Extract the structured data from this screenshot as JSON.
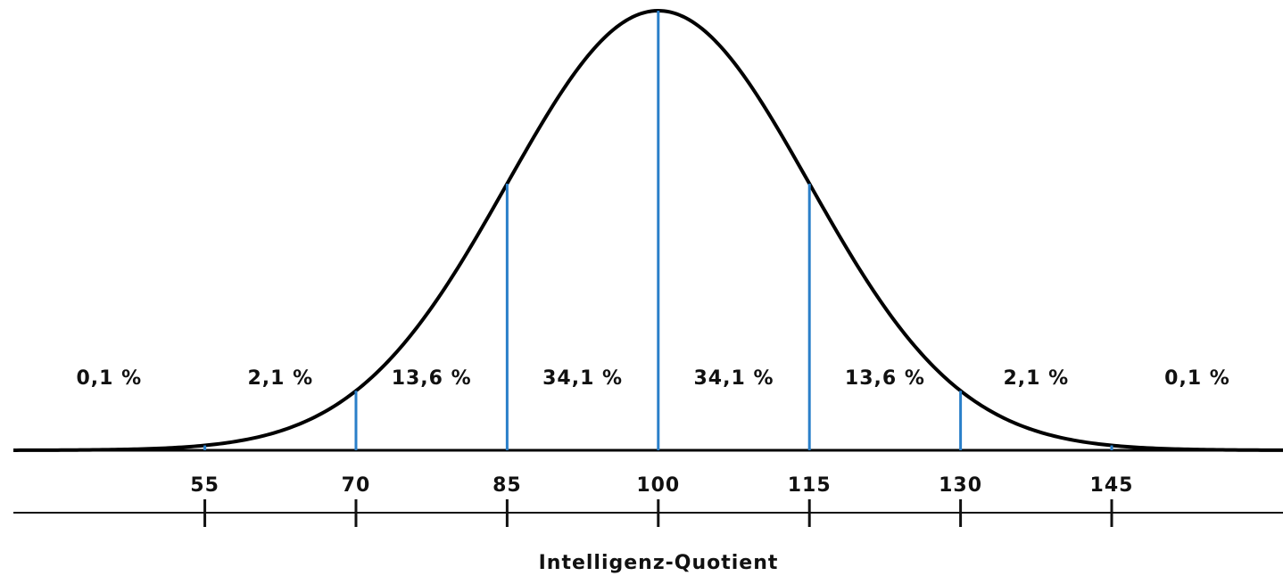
{
  "chart_data": {
    "type": "normal",
    "xlabel": "Intelligenz-Quotient",
    "xlim": [
      36,
      162
    ],
    "xticks": [
      55,
      70,
      85,
      100,
      115,
      130,
      145
    ],
    "regions": {
      "values": [
        0.1,
        2.1,
        13.6,
        34.1,
        34.1,
        13.6,
        2.1,
        0.1
      ],
      "value_labels": [
        "0,1 %",
        "2,1 %",
        "13,6 %",
        "34,1 %",
        "34,1 %",
        "13,6 %",
        "2,1 %",
        "0,1 %"
      ]
    },
    "curve_color": "#000000",
    "line_color": "#2a7fc9"
  }
}
